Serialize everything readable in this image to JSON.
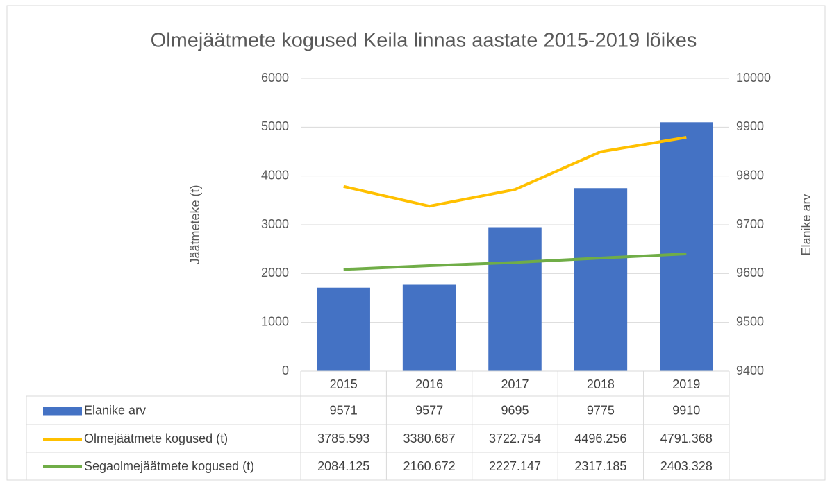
{
  "chart_data": {
    "type": "bar-line",
    "title": "Olmejäätmete kogused Keila linnas aastate 2015-2019 lõikes",
    "y_label": "Jäätmeteke (t)",
    "y2_label": "Elanike arv",
    "categories": [
      "2015",
      "2016",
      "2017",
      "2018",
      "2019"
    ],
    "series": [
      {
        "name": "Elanike arv",
        "type": "bar",
        "color": "#4472c4",
        "axis": "y2",
        "values": [
          9571,
          9577,
          9695,
          9775,
          9910
        ]
      },
      {
        "name": "Olmejäätmete kogused (t)",
        "type": "line",
        "color": "#ffc000",
        "values": [
          3785.593,
          3380.687,
          3722.754,
          4496.256,
          4791.368
        ]
      },
      {
        "name": "Segaolmejäätmete kogused (t)",
        "type": "line",
        "color": "#70ad47",
        "values": [
          2084.125,
          2160.672,
          2227.147,
          2317.185,
          2403.328
        ]
      }
    ],
    "ylim": [
      0,
      6000
    ],
    "yticks": [
      0,
      1000,
      2000,
      3000,
      4000,
      5000,
      6000
    ],
    "y2lim": [
      9400,
      10000
    ],
    "y2ticks": [
      9400,
      9500,
      9600,
      9700,
      9800,
      9900,
      10000
    ],
    "grid": true,
    "data_table": true
  }
}
